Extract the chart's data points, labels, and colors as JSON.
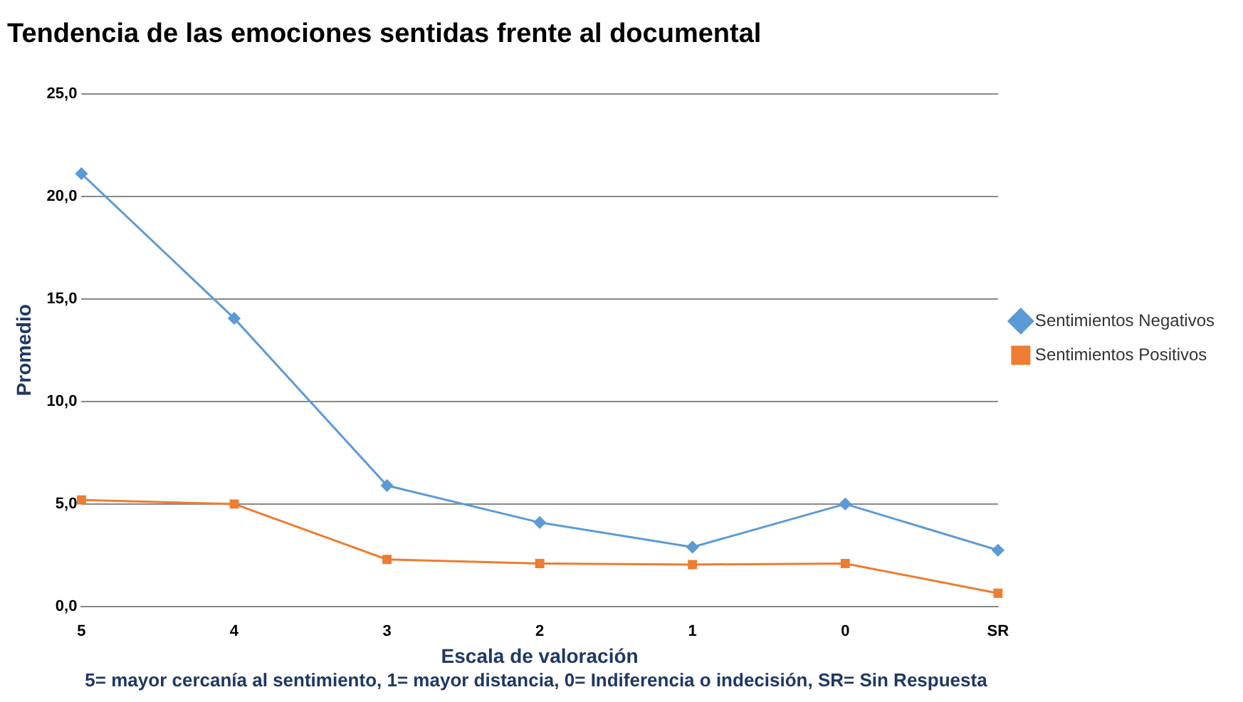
{
  "chart_data": {
    "type": "line",
    "title": "Tendencia de las emociones sentidas frente al documental",
    "xlabel": "Escala de valoración",
    "ylabel": "Promedio",
    "categories": [
      "5",
      "4",
      "3",
      "2",
      "1",
      "0",
      "SR"
    ],
    "series": [
      {
        "name": "Sentimientos Negativos",
        "color": "#5b9bd5",
        "marker": "diamond",
        "values": [
          21.1,
          14.05,
          5.9,
          4.1,
          2.9,
          5.0,
          2.75
        ]
      },
      {
        "name": "Sentimientos Positivos",
        "color": "#ed7d31",
        "marker": "square",
        "values": [
          5.2,
          5.0,
          2.3,
          2.1,
          2.05,
          2.1,
          0.65
        ]
      }
    ],
    "ylim": [
      0,
      25
    ],
    "yticks": [
      {
        "value": 0,
        "label": "0,0"
      },
      {
        "value": 5,
        "label": "5,0"
      },
      {
        "value": 10,
        "label": "10,0"
      },
      {
        "value": 15,
        "label": "15,0"
      },
      {
        "value": 20,
        "label": "20,0"
      },
      {
        "value": 25,
        "label": "25,0"
      }
    ],
    "grid": "y",
    "legend": "right",
    "line_style": "solid",
    "annotations": [
      "5= mayor cercanía al sentimiento, 1= mayor distancia, 0= Indiferencia o indecisión, SR= Sin Respuesta"
    ]
  }
}
